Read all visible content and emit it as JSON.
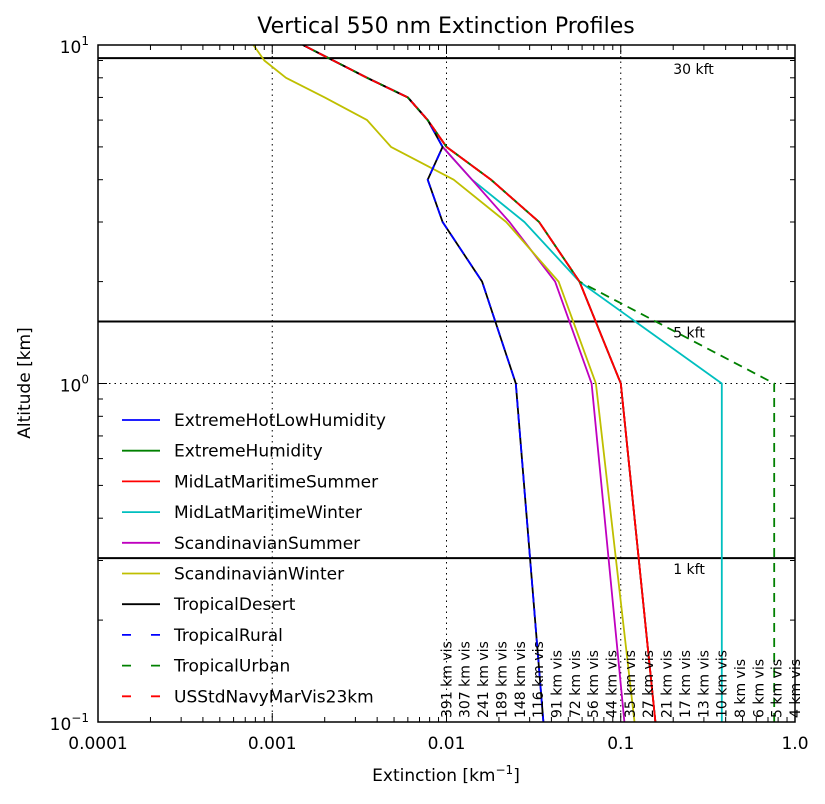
{
  "chart_data": {
    "type": "line",
    "title": "Vertical 550 nm Extinction Profiles",
    "xlabel": "Extinction [km",
    "xlabel_sup": "−1",
    "xlabel_end": "]",
    "ylabel": "Altitude [km]",
    "xscale": "log",
    "yscale": "log",
    "xlim": [
      0.0001,
      1.0
    ],
    "ylim": [
      0.1,
      10
    ],
    "x_ticks": [
      {
        "value": 0.0001,
        "label": "0.0001"
      },
      {
        "value": 0.001,
        "label": "0.001"
      },
      {
        "value": 0.01,
        "label": "0.01"
      },
      {
        "value": 0.1,
        "label": "0.1"
      },
      {
        "value": 1.0,
        "label": "1.0"
      }
    ],
    "y_ticks": [
      {
        "value": 10,
        "base": "10",
        "exp": "1"
      },
      {
        "value": 1,
        "base": "10",
        "exp": "0"
      },
      {
        "value": 0.1,
        "base": "10",
        "exp": "−1"
      }
    ],
    "grid": "dotted at major ticks",
    "legend_position": "lower-left",
    "altitude_reference_lines": [
      {
        "altitude_km": 9.144,
        "label": "30 kft"
      },
      {
        "altitude_km": 1.524,
        "label": "5 kft"
      },
      {
        "altitude_km": 0.3048,
        "label": "1 kft"
      }
    ],
    "visibility_markers": [
      {
        "extinction": 0.01,
        "label": "391 km vis"
      },
      {
        "extinction": 0.0127,
        "label": "307 km vis"
      },
      {
        "extinction": 0.0162,
        "label": "241 km vis"
      },
      {
        "extinction": 0.0207,
        "label": "189 km vis"
      },
      {
        "extinction": 0.0264,
        "label": "148 km vis"
      },
      {
        "extinction": 0.0336,
        "label": "116 km vis"
      },
      {
        "extinction": 0.0428,
        "label": "91 km vis"
      },
      {
        "extinction": 0.0546,
        "label": "72 km vis"
      },
      {
        "extinction": 0.0695,
        "label": "56 km vis"
      },
      {
        "extinction": 0.0886,
        "label": "44 km vis"
      },
      {
        "extinction": 0.1129,
        "label": "35 km vis"
      },
      {
        "extinction": 0.1438,
        "label": "27 km vis"
      },
      {
        "extinction": 0.1833,
        "label": "21 km vis"
      },
      {
        "extinction": 0.2336,
        "label": "17 km vis"
      },
      {
        "extinction": 0.2976,
        "label": "13 km vis"
      },
      {
        "extinction": 0.3793,
        "label": "10 km vis"
      },
      {
        "extinction": 0.4833,
        "label": "8 km vis"
      },
      {
        "extinction": 0.6158,
        "label": "6 km vis"
      },
      {
        "extinction": 0.7848,
        "label": "5 km vis"
      },
      {
        "extinction": 1.0,
        "label": "4 km vis"
      }
    ],
    "series": [
      {
        "name": "ExtremeHotLowHumidity",
        "color": "#0000ff",
        "dash": "solid",
        "points": [
          [
            0.158,
            0.1
          ],
          [
            0.1,
            1
          ],
          [
            0.058,
            2
          ],
          [
            0.034,
            3
          ],
          [
            0.018,
            4
          ],
          [
            0.01,
            5
          ],
          [
            0.0078,
            6
          ],
          [
            0.006,
            7
          ],
          [
            0.0035,
            8
          ],
          [
            0.0015,
            10
          ]
        ]
      },
      {
        "name": "ExtremeHumidity",
        "color": "#008000",
        "dash": "solid",
        "points": [
          [
            0.158,
            0.1
          ],
          [
            0.1,
            1
          ],
          [
            0.058,
            2
          ],
          [
            0.034,
            3
          ],
          [
            0.018,
            4
          ],
          [
            0.01,
            5
          ],
          [
            0.0078,
            6
          ],
          [
            0.006,
            7
          ],
          [
            0.0035,
            8
          ],
          [
            0.0015,
            10
          ]
        ]
      },
      {
        "name": "MidLatMaritimeSummer",
        "color": "#ff0000",
        "dash": "solid",
        "points": [
          [
            0.158,
            0.1
          ],
          [
            0.1,
            1
          ],
          [
            0.058,
            2
          ],
          [
            0.034,
            3
          ],
          [
            0.018,
            4
          ],
          [
            0.01,
            5
          ],
          [
            0.0078,
            6
          ],
          [
            0.006,
            7
          ],
          [
            0.0035,
            8
          ],
          [
            0.0015,
            10
          ]
        ]
      },
      {
        "name": "MidLatMaritimeWinter",
        "color": "#00bfbf",
        "dash": "solid",
        "points": [
          [
            0.38,
            0.1
          ],
          [
            0.38,
            1
          ],
          [
            0.058,
            2
          ],
          [
            0.028,
            3
          ],
          [
            0.014,
            4
          ],
          [
            0.0095,
            5
          ]
        ]
      },
      {
        "name": "ScandinavianSummer",
        "color": "#bf00bf",
        "dash": "solid",
        "points": [
          [
            0.105,
            0.1
          ],
          [
            0.068,
            1
          ],
          [
            0.042,
            2
          ],
          [
            0.023,
            3
          ],
          [
            0.014,
            4
          ],
          [
            0.0095,
            5
          ]
        ]
      },
      {
        "name": "ScandinavianWinter",
        "color": "#bfbf00",
        "dash": "solid",
        "points": [
          [
            0.12,
            0.1
          ],
          [
            0.072,
            1
          ],
          [
            0.044,
            2
          ],
          [
            0.022,
            3
          ],
          [
            0.011,
            4
          ],
          [
            0.0048,
            5
          ],
          [
            0.0035,
            6
          ],
          [
            0.002,
            7
          ],
          [
            0.0012,
            8
          ],
          [
            0.0009,
            9
          ],
          [
            0.00078,
            10
          ]
        ]
      },
      {
        "name": "TropicalDesert",
        "color": "#000000",
        "dash": "solid",
        "points": [
          [
            0.036,
            0.1
          ],
          [
            0.025,
            1
          ],
          [
            0.016,
            2
          ],
          [
            0.0095,
            3
          ],
          [
            0.0078,
            4
          ],
          [
            0.0095,
            5
          ],
          [
            0.0078,
            6
          ],
          [
            0.006,
            7
          ],
          [
            0.0035,
            8
          ],
          [
            0.0015,
            10
          ]
        ]
      },
      {
        "name": "TropicalRural",
        "color": "#0000ff",
        "dash": "dashed",
        "points": [
          [
            0.036,
            0.1
          ],
          [
            0.025,
            1
          ],
          [
            0.016,
            2
          ],
          [
            0.0095,
            3
          ],
          [
            0.0078,
            4
          ],
          [
            0.0095,
            5
          ],
          [
            0.0078,
            6
          ],
          [
            0.006,
            7
          ],
          [
            0.0035,
            8
          ],
          [
            0.0015,
            10
          ]
        ]
      },
      {
        "name": "TropicalUrban",
        "color": "#008000",
        "dash": "dashed",
        "points": [
          [
            0.76,
            0.1
          ],
          [
            0.76,
            1
          ],
          [
            0.058,
            2
          ],
          [
            0.034,
            3
          ],
          [
            0.018,
            4
          ],
          [
            0.01,
            5
          ],
          [
            0.0078,
            6
          ],
          [
            0.006,
            7
          ],
          [
            0.0035,
            8
          ],
          [
            0.0015,
            10
          ]
        ]
      },
      {
        "name": "USStdNavyMarVis23km",
        "color": "#ff0000",
        "dash": "dashed",
        "points": [
          [
            0.158,
            0.1
          ],
          [
            0.1,
            1
          ],
          [
            0.058,
            2
          ],
          [
            0.034,
            3
          ],
          [
            0.018,
            4
          ],
          [
            0.01,
            5
          ],
          [
            0.0078,
            6
          ],
          [
            0.006,
            7
          ],
          [
            0.0035,
            8
          ],
          [
            0.0015,
            10
          ]
        ]
      }
    ]
  }
}
